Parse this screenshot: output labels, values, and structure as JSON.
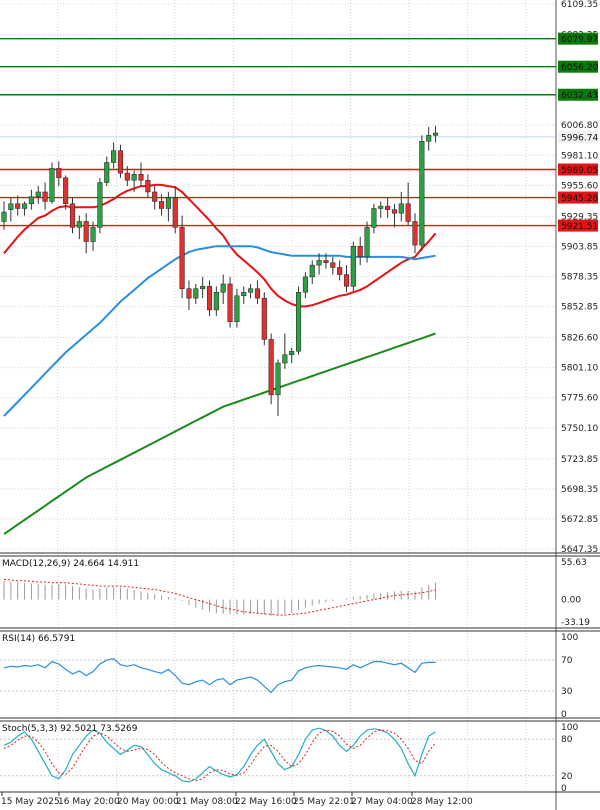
{
  "chart_data": {
    "type": "candlestick",
    "price_axis": {
      "ylim": [
        5647.35,
        6109.35
      ],
      "ticks": [
        6109.35,
        6083.35,
        6006.8,
        5981.1,
        5955.6,
        5929.35,
        5903.85,
        5878.35,
        5852.85,
        5826.6,
        5801.1,
        5775.6,
        5750.1,
        5723.85,
        5698.35,
        5672.85,
        5647.35
      ]
    },
    "time_labels": [
      "15 May 2025",
      "16 May 20:00",
      "20 May 00:00",
      "21 May 08:00",
      "22 May 16:00",
      "25 May 22:01",
      "27 May 04:00",
      "28 May 12:00"
    ],
    "green_levels": [
      6079.97,
      6056.2,
      6032.43
    ],
    "red_levels": [
      5969.05,
      5945.28,
      5921.51
    ],
    "current_price": 5996.74,
    "colors": {
      "up": "#2ea043",
      "down": "#e03030",
      "wick": "#333333",
      "fast_ma": "#e81010",
      "mid_ma": "#2a8de0",
      "slow_ma": "#1a8a1a",
      "resistance": "#0a7a0a",
      "support": "#e01515"
    },
    "candles": [
      [
        5925,
        5942,
        5918,
        5933
      ],
      [
        5935,
        5945,
        5925,
        5940
      ],
      [
        5940,
        5947,
        5930,
        5936
      ],
      [
        5936,
        5942,
        5930,
        5940
      ],
      [
        5940,
        5952,
        5935,
        5946
      ],
      [
        5946,
        5955,
        5940,
        5950
      ],
      [
        5950,
        5958,
        5935,
        5942
      ],
      [
        5942,
        5975,
        5940,
        5970
      ],
      [
        5970,
        5976,
        5955,
        5962
      ],
      [
        5962,
        5964,
        5935,
        5940
      ],
      [
        5940,
        5945,
        5915,
        5920
      ],
      [
        5920,
        5930,
        5910,
        5925
      ],
      [
        5925,
        5932,
        5898,
        5908
      ],
      [
        5908,
        5925,
        5900,
        5920
      ],
      [
        5920,
        5962,
        5915,
        5958
      ],
      [
        5958,
        5980,
        5955,
        5975
      ],
      [
        5975,
        5992,
        5970,
        5985
      ],
      [
        5985,
        5990,
        5962,
        5966
      ],
      [
        5966,
        5972,
        5955,
        5960
      ],
      [
        5960,
        5968,
        5950,
        5965
      ],
      [
        5965,
        5975,
        5955,
        5960
      ],
      [
        5960,
        5965,
        5945,
        5950
      ],
      [
        5950,
        5955,
        5935,
        5942
      ],
      [
        5942,
        5948,
        5930,
        5936
      ],
      [
        5936,
        5950,
        5925,
        5945
      ],
      [
        5945,
        5955,
        5915,
        5920
      ],
      [
        5920,
        5930,
        5860,
        5868
      ],
      [
        5868,
        5875,
        5850,
        5860
      ],
      [
        5860,
        5872,
        5855,
        5868
      ],
      [
        5868,
        5878,
        5860,
        5870
      ],
      [
        5870,
        5875,
        5845,
        5850
      ],
      [
        5850,
        5870,
        5845,
        5865
      ],
      [
        5865,
        5880,
        5855,
        5872
      ],
      [
        5872,
        5878,
        5835,
        5840
      ],
      [
        5840,
        5868,
        5835,
        5862
      ],
      [
        5862,
        5870,
        5855,
        5865
      ],
      [
        5865,
        5872,
        5860,
        5868
      ],
      [
        5868,
        5875,
        5855,
        5860
      ],
      [
        5860,
        5865,
        5820,
        5825
      ],
      [
        5825,
        5830,
        5770,
        5778
      ],
      [
        5778,
        5808,
        5760,
        5805
      ],
      [
        5805,
        5830,
        5800,
        5812
      ],
      [
        5812,
        5818,
        5805,
        5815
      ],
      [
        5815,
        5870,
        5812,
        5865
      ],
      [
        5865,
        5882,
        5860,
        5878
      ],
      [
        5878,
        5892,
        5872,
        5888
      ],
      [
        5888,
        5898,
        5880,
        5892
      ],
      [
        5892,
        5898,
        5885,
        5890
      ],
      [
        5890,
        5895,
        5880,
        5886
      ],
      [
        5886,
        5892,
        5875,
        5880
      ],
      [
        5880,
        5888,
        5865,
        5870
      ],
      [
        5870,
        5908,
        5866,
        5904
      ],
      [
        5904,
        5912,
        5888,
        5895
      ],
      [
        5895,
        5925,
        5890,
        5920
      ],
      [
        5920,
        5940,
        5915,
        5936
      ],
      [
        5936,
        5942,
        5928,
        5938
      ],
      [
        5938,
        5945,
        5928,
        5935
      ],
      [
        5935,
        5940,
        5920,
        5932
      ],
      [
        5932,
        5950,
        5925,
        5940
      ],
      [
        5940,
        5958,
        5922,
        5925
      ],
      [
        5925,
        5932,
        5898,
        5905
      ],
      [
        5905,
        5998,
        5900,
        5993
      ],
      [
        5993,
        6005,
        5985,
        5998
      ],
      [
        5998,
        6006,
        5992,
        6000
      ]
    ],
    "moving_averages": [
      {
        "values": [
          5898,
          5905,
          5912,
          5918,
          5923,
          5928,
          5930,
          5934,
          5937,
          5938,
          5937,
          5937,
          5937,
          5937,
          5938,
          5941,
          5944,
          5948,
          5951,
          5953,
          5955,
          5955,
          5956,
          5956,
          5955,
          5954,
          5950,
          5944,
          5938,
          5932,
          5926,
          5919,
          5913,
          5904,
          5897,
          5892,
          5887,
          5882,
          5876,
          5868,
          5862,
          5858,
          5855,
          5853,
          5853,
          5854,
          5856,
          5858,
          5860,
          5862,
          5863,
          5865,
          5867,
          5870,
          5874,
          5878,
          5882,
          5886,
          5890,
          5893,
          5895,
          5902,
          5908,
          5915
        ]
      },
      {
        "values": [
          5760,
          5766,
          5772,
          5778,
          5784,
          5790,
          5796,
          5802,
          5808,
          5814,
          5819,
          5824,
          5829,
          5834,
          5839,
          5845,
          5851,
          5857,
          5862,
          5867,
          5872,
          5877,
          5881,
          5885,
          5889,
          5893,
          5896,
          5899,
          5901,
          5902,
          5903,
          5904,
          5904,
          5904,
          5904,
          5904,
          5904,
          5903,
          5901,
          5899,
          5898,
          5897,
          5896,
          5896,
          5896,
          5896,
          5896,
          5896,
          5896,
          5896,
          5895,
          5895,
          5895,
          5895,
          5895,
          5895,
          5895,
          5895,
          5895,
          5894,
          5893,
          5894,
          5895,
          5896
        ]
      },
      {
        "values": [
          5660,
          5664,
          5668,
          5672,
          5676,
          5680,
          5684,
          5688,
          5692,
          5696,
          5700,
          5704,
          5708,
          5711,
          5714,
          5717,
          5720,
          5723,
          5726,
          5729,
          5732,
          5735,
          5738,
          5741,
          5744,
          5747,
          5750,
          5753,
          5756,
          5759,
          5762,
          5765,
          5768,
          5770,
          5772,
          5774,
          5776,
          5778,
          5780,
          5782,
          5784,
          5786,
          5788,
          5790,
          5792,
          5794,
          5796,
          5798,
          5800,
          5802,
          5804,
          5806,
          5808,
          5810,
          5812,
          5814,
          5816,
          5818,
          5820,
          5822,
          5824,
          5826,
          5828,
          5830
        ]
      }
    ],
    "macd": {
      "label": "MACD(12,26,9) 24.664 14.911",
      "ylim": [
        -33.19,
        55.633
      ],
      "ticks": [
        55.633,
        0.0,
        -33.19
      ],
      "hist": [
        28,
        27,
        26,
        25,
        24,
        23,
        22,
        22,
        23,
        22,
        20,
        18,
        16,
        15,
        16,
        18,
        19,
        18,
        16,
        14,
        12,
        10,
        8,
        6,
        4,
        2,
        -2,
        -8,
        -12,
        -15,
        -18,
        -20,
        -21,
        -22,
        -22,
        -22,
        -21,
        -21,
        -22,
        -24,
        -23,
        -21,
        -19,
        -15,
        -12,
        -9,
        -6,
        -4,
        -2,
        0,
        2,
        4,
        5,
        7,
        9,
        10,
        11,
        12,
        13,
        13,
        12,
        18,
        22,
        25
      ],
      "signal": [
        30,
        29,
        28,
        28,
        27,
        26,
        26,
        25,
        25,
        25,
        24,
        23,
        22,
        21,
        20,
        20,
        20,
        20,
        19,
        18,
        17,
        16,
        15,
        13,
        11,
        9,
        6,
        3,
        0,
        -3,
        -6,
        -9,
        -12,
        -14,
        -16,
        -18,
        -19,
        -20,
        -21,
        -22,
        -23,
        -23,
        -22,
        -21,
        -20,
        -18,
        -16,
        -14,
        -12,
        -10,
        -8,
        -6,
        -4,
        -2,
        0,
        2,
        4,
        6,
        7,
        8,
        9,
        10,
        12,
        14
      ]
    },
    "rsi": {
      "label": "RSI(14) 66.5791",
      "ylim": [
        0,
        100
      ],
      "ticks": [
        100,
        70,
        30,
        0
      ],
      "values": [
        60,
        62,
        61,
        63,
        62,
        64,
        60,
        68,
        65,
        58,
        52,
        56,
        50,
        55,
        65,
        70,
        72,
        64,
        62,
        64,
        60,
        58,
        55,
        53,
        58,
        50,
        40,
        38,
        42,
        44,
        38,
        44,
        46,
        38,
        44,
        46,
        48,
        44,
        36,
        28,
        38,
        42,
        44,
        56,
        60,
        62,
        63,
        62,
        61,
        60,
        58,
        64,
        60,
        64,
        68,
        68,
        66,
        64,
        66,
        60,
        54,
        66,
        67,
        67
      ]
    },
    "stoch": {
      "label": "Stoch(5,3,3) 92.5021 73.5269",
      "ylim": [
        0,
        100
      ],
      "ticks": [
        100,
        80,
        20,
        0
      ],
      "k": [
        70,
        75,
        85,
        92,
        80,
        60,
        40,
        20,
        15,
        30,
        55,
        70,
        85,
        95,
        90,
        75,
        65,
        55,
        62,
        70,
        68,
        55,
        40,
        30,
        25,
        20,
        12,
        10,
        15,
        25,
        35,
        28,
        22,
        18,
        22,
        35,
        55,
        70,
        80,
        60,
        40,
        30,
        35,
        55,
        80,
        95,
        98,
        94,
        85,
        70,
        60,
        70,
        85,
        95,
        97,
        95,
        90,
        80,
        65,
        40,
        20,
        55,
        85,
        92
      ],
      "d": [
        65,
        70,
        78,
        85,
        85,
        75,
        60,
        40,
        25,
        22,
        33,
        52,
        70,
        85,
        90,
        85,
        75,
        65,
        60,
        62,
        66,
        63,
        55,
        42,
        32,
        25,
        20,
        15,
        12,
        15,
        25,
        30,
        29,
        23,
        21,
        25,
        38,
        55,
        68,
        70,
        60,
        45,
        35,
        40,
        55,
        75,
        90,
        95,
        93,
        85,
        72,
        65,
        70,
        82,
        92,
        95,
        94,
        90,
        80,
        65,
        45,
        40,
        60,
        74
      ]
    }
  }
}
